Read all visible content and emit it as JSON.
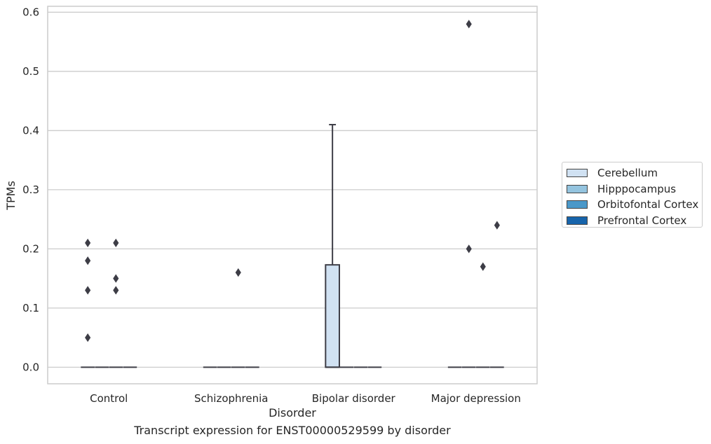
{
  "chart_data": {
    "type": "box",
    "xlabel": "Disorder",
    "ylabel": "TPMs",
    "caption": "Transcript expression for ENST00000529599 by disorder",
    "categories": [
      "Control",
      "Schizophrenia",
      "Bipolar disorder",
      "Major depression"
    ],
    "ylim": [
      -0.028,
      0.61
    ],
    "yticks": [
      0.0,
      0.1,
      0.2,
      0.3,
      0.4,
      0.5,
      0.6
    ],
    "ytick_labels": [
      "0.0",
      "0.1",
      "0.2",
      "0.3",
      "0.4",
      "0.5",
      "0.6"
    ],
    "grid": "horizontal",
    "legend_position": "right",
    "series": [
      {
        "name": "Cerebellum",
        "color": "#d0e1f2"
      },
      {
        "name": "Hipppocampus",
        "color": "#94c4df"
      },
      {
        "name": "Orbitofontal Cortex",
        "color": "#4a98c9"
      },
      {
        "name": "Prefrontal Cortex",
        "color": "#1764ab"
      }
    ],
    "boxes": [
      {
        "category": "Control",
        "series": "Cerebellum",
        "q1": 0,
        "median": 0,
        "q3": 0,
        "whisker_low": 0,
        "whisker_high": 0,
        "outliers": [
          0.21,
          0.18,
          0.13,
          0.05
        ]
      },
      {
        "category": "Control",
        "series": "Hipppocampus",
        "q1": 0,
        "median": 0,
        "q3": 0,
        "whisker_low": 0,
        "whisker_high": 0,
        "outliers": []
      },
      {
        "category": "Control",
        "series": "Orbitofontal Cortex",
        "q1": 0,
        "median": 0,
        "q3": 0,
        "whisker_low": 0,
        "whisker_high": 0,
        "outliers": [
          0.21,
          0.15,
          0.13
        ]
      },
      {
        "category": "Control",
        "series": "Prefrontal Cortex",
        "q1": 0,
        "median": 0,
        "q3": 0,
        "whisker_low": 0,
        "whisker_high": 0,
        "outliers": []
      },
      {
        "category": "Schizophrenia",
        "series": "Cerebellum",
        "q1": 0,
        "median": 0,
        "q3": 0,
        "whisker_low": 0,
        "whisker_high": 0,
        "outliers": []
      },
      {
        "category": "Schizophrenia",
        "series": "Hipppocampus",
        "q1": 0,
        "median": 0,
        "q3": 0,
        "whisker_low": 0,
        "whisker_high": 0,
        "outliers": []
      },
      {
        "category": "Schizophrenia",
        "series": "Orbitofontal Cortex",
        "q1": 0,
        "median": 0,
        "q3": 0,
        "whisker_low": 0,
        "whisker_high": 0,
        "outliers": [
          0.16
        ]
      },
      {
        "category": "Schizophrenia",
        "series": "Prefrontal Cortex",
        "q1": 0,
        "median": 0,
        "q3": 0,
        "whisker_low": 0,
        "whisker_high": 0,
        "outliers": []
      },
      {
        "category": "Bipolar disorder",
        "series": "Cerebellum",
        "q1": 0,
        "median": 0,
        "q3": 0.173,
        "whisker_low": 0,
        "whisker_high": 0.41,
        "outliers": []
      },
      {
        "category": "Bipolar disorder",
        "series": "Hipppocampus",
        "q1": 0,
        "median": 0,
        "q3": 0,
        "whisker_low": 0,
        "whisker_high": 0,
        "outliers": []
      },
      {
        "category": "Bipolar disorder",
        "series": "Orbitofontal Cortex",
        "q1": 0,
        "median": 0,
        "q3": 0,
        "whisker_low": 0,
        "whisker_high": 0,
        "outliers": []
      },
      {
        "category": "Bipolar disorder",
        "series": "Prefrontal Cortex",
        "q1": 0,
        "median": 0,
        "q3": 0,
        "whisker_low": 0,
        "whisker_high": 0,
        "outliers": []
      },
      {
        "category": "Major depression",
        "series": "Cerebellum",
        "q1": 0,
        "median": 0,
        "q3": 0,
        "whisker_low": 0,
        "whisker_high": 0,
        "outliers": []
      },
      {
        "category": "Major depression",
        "series": "Hipppocampus",
        "q1": 0,
        "median": 0,
        "q3": 0,
        "whisker_low": 0,
        "whisker_high": 0,
        "outliers": [
          0.58,
          0.2
        ]
      },
      {
        "category": "Major depression",
        "series": "Orbitofontal Cortex",
        "q1": 0,
        "median": 0,
        "q3": 0,
        "whisker_low": 0,
        "whisker_high": 0,
        "outliers": [
          0.17
        ]
      },
      {
        "category": "Major depression",
        "series": "Prefrontal Cortex",
        "q1": 0,
        "median": 0,
        "q3": 0,
        "whisker_low": 0,
        "whisker_high": 0,
        "outliers": [
          0.24
        ]
      }
    ]
  }
}
